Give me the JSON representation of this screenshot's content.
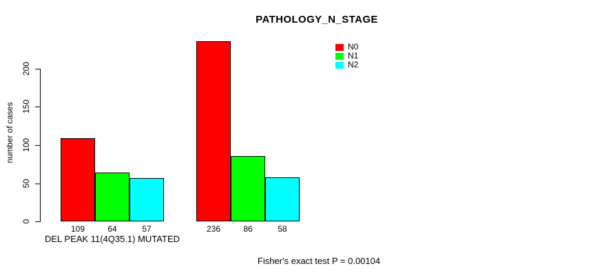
{
  "chart_data": {
    "type": "bar",
    "title": "PATHOLOGY_N_STAGE",
    "ylabel": "number of cases",
    "xlabel": "",
    "ylim": [
      0,
      240
    ],
    "yticks": [
      0,
      50,
      100,
      150,
      200
    ],
    "grid": false,
    "legend_position": "top-right",
    "categories": [
      "DEL PEAK 11(4Q35.1) MUTATED",
      ""
    ],
    "series": [
      {
        "name": "N0",
        "color": "#ff0000",
        "values": [
          109,
          236
        ]
      },
      {
        "name": "N1",
        "color": "#00ff00",
        "values": [
          64,
          86
        ]
      },
      {
        "name": "N2",
        "color": "#00ffff",
        "values": [
          57,
          58
        ]
      }
    ],
    "show_bar_values": true,
    "annotation": "Fisher's exact test P = 0.00104"
  }
}
